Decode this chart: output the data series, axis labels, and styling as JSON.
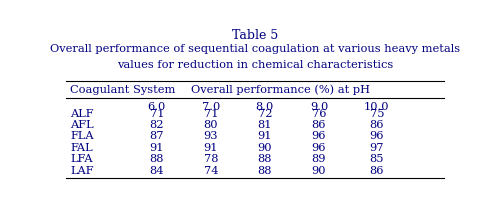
{
  "title_line1": "Table 5",
  "title_line2": "Overall performance of sequential coagulation at various heavy metals",
  "title_line3": "values for reduction in chemical characteristics",
  "col_header_left": "Coagulant System",
  "col_header_right": "Overall performance (%) at pH",
  "ph_values": [
    "6.0",
    "7.0",
    "8.0",
    "9.0",
    "10.0"
  ],
  "rows": [
    [
      "ALF",
      "71",
      "71",
      "72",
      "76",
      "75"
    ],
    [
      "AFL",
      "82",
      "80",
      "81",
      "86",
      "86"
    ],
    [
      "FLA",
      "87",
      "93",
      "91",
      "96",
      "96"
    ],
    [
      "FAL",
      "91",
      "91",
      "90",
      "96",
      "97"
    ],
    [
      "LFA",
      "88",
      "78",
      "88",
      "89",
      "85"
    ],
    [
      "LAF",
      "84",
      "74",
      "88",
      "90",
      "86"
    ]
  ],
  "bg_color": "#ffffff",
  "title_color": "#000080",
  "header_color": "#000080",
  "data_color": "#000080",
  "line_color": "#000000",
  "font_size_title1": 9.0,
  "font_size_title2": 8.2,
  "font_size_header": 8.2,
  "font_size_data": 8.2,
  "ph_centers": [
    0.245,
    0.385,
    0.525,
    0.665,
    0.815
  ]
}
